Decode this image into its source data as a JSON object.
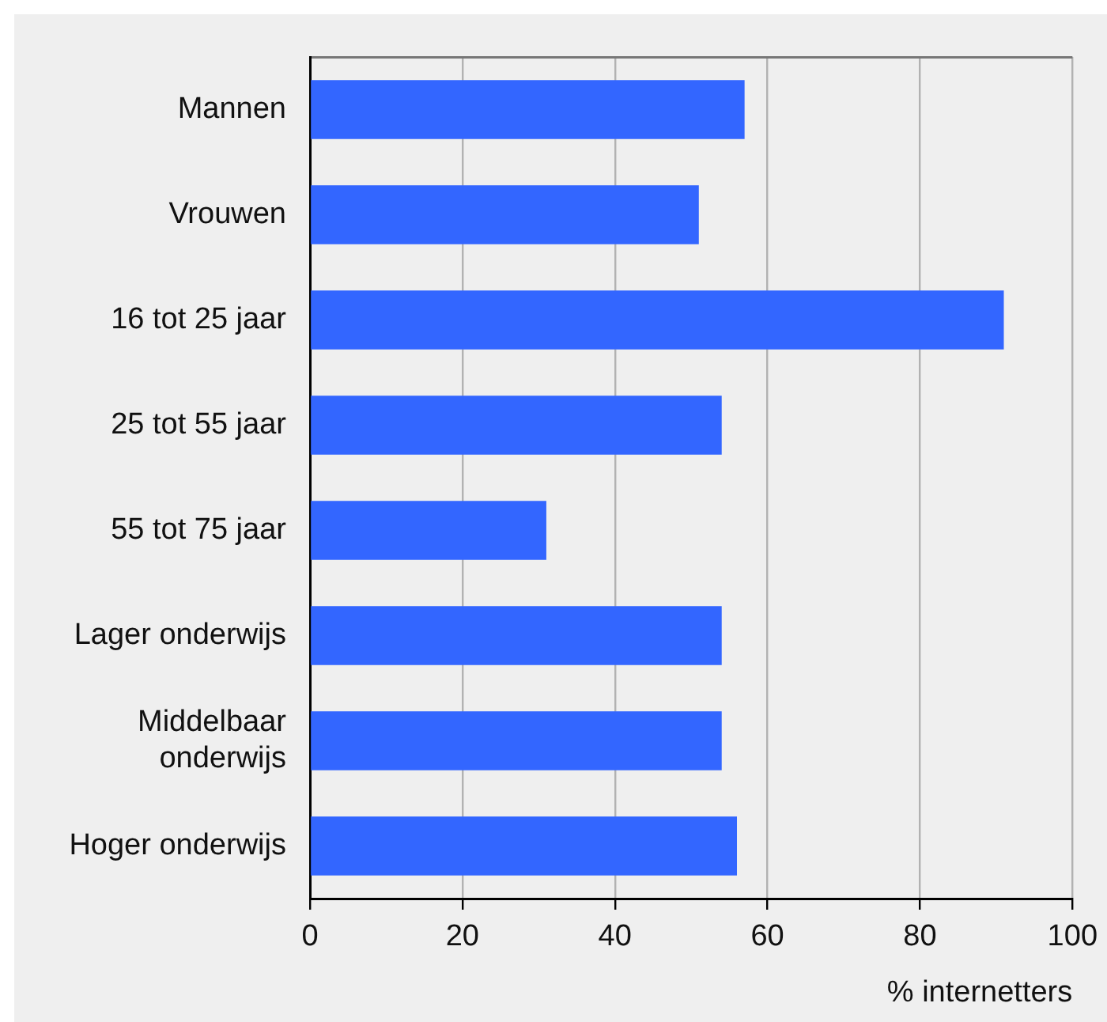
{
  "chart_data": {
    "type": "bar",
    "orientation": "horizontal",
    "categories": [
      "Mannen",
      "Vrouwen",
      "16 tot 25 jaar",
      "25 tot 55 jaar",
      "55 tot 75 jaar",
      "Lager onderwijs",
      "Middelbaar onderwijs",
      "Hoger onderwijs"
    ],
    "values": [
      57,
      51,
      91,
      54,
      31,
      54,
      54,
      56
    ],
    "color": "#3366ff",
    "xlabel": "% internetters",
    "xlim": [
      0,
      100
    ],
    "xticks": [
      0,
      20,
      40,
      60,
      80,
      100
    ],
    "grid": "x"
  }
}
